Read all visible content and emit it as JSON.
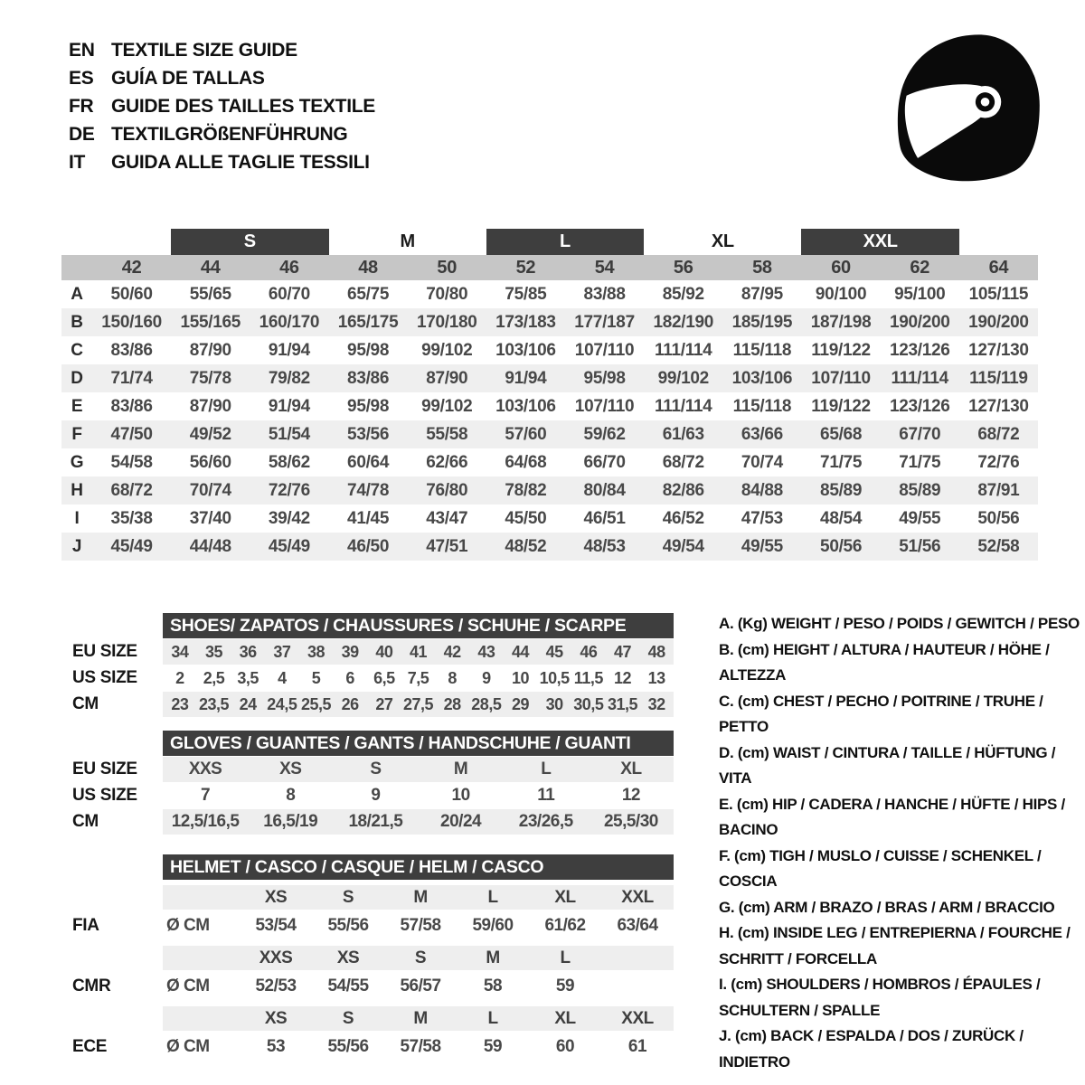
{
  "colors": {
    "dark_bar": "#3e3e3e",
    "gray_band": "#c6c6c6",
    "row_stripe": "#efefef",
    "text": "#1c1c1c",
    "value_text": "#484848"
  },
  "header": {
    "languages": [
      {
        "code": "EN",
        "title": "TEXTILE SIZE GUIDE"
      },
      {
        "code": "ES",
        "title": "GUÍA DE TALLAS"
      },
      {
        "code": "FR",
        "title": "GUIDE DES TAILLES TEXTILE"
      },
      {
        "code": "DE",
        "title": "TEXTILGRÖßENFÜHRUNG"
      },
      {
        "code": "IT",
        "title": "GUIDA ALLE TAGLIE TESSILI"
      }
    ],
    "icon": "racing-helmet-icon"
  },
  "main_table": {
    "size_groups": [
      {
        "label": "S",
        "dark": true
      },
      {
        "label": "M",
        "dark": false
      },
      {
        "label": "L",
        "dark": true
      },
      {
        "label": "XL",
        "dark": false
      },
      {
        "label": "XXL",
        "dark": true
      }
    ],
    "columns": [
      "42",
      "44",
      "46",
      "48",
      "50",
      "52",
      "54",
      "56",
      "58",
      "60",
      "62",
      "64"
    ],
    "rows": [
      {
        "letter": "A",
        "values": [
          "50/60",
          "55/65",
          "60/70",
          "65/75",
          "70/80",
          "75/85",
          "83/88",
          "85/92",
          "87/95",
          "90/100",
          "95/100",
          "105/115"
        ]
      },
      {
        "letter": "B",
        "values": [
          "150/160",
          "155/165",
          "160/170",
          "165/175",
          "170/180",
          "173/183",
          "177/187",
          "182/190",
          "185/195",
          "187/198",
          "190/200",
          "190/200"
        ]
      },
      {
        "letter": "C",
        "values": [
          "83/86",
          "87/90",
          "91/94",
          "95/98",
          "99/102",
          "103/106",
          "107/110",
          "111/114",
          "115/118",
          "119/122",
          "123/126",
          "127/130"
        ]
      },
      {
        "letter": "D",
        "values": [
          "71/74",
          "75/78",
          "79/82",
          "83/86",
          "87/90",
          "91/94",
          "95/98",
          "99/102",
          "103/106",
          "107/110",
          "111/114",
          "115/119"
        ]
      },
      {
        "letter": "E",
        "values": [
          "83/86",
          "87/90",
          "91/94",
          "95/98",
          "99/102",
          "103/106",
          "107/110",
          "111/114",
          "115/118",
          "119/122",
          "123/126",
          "127/130"
        ]
      },
      {
        "letter": "F",
        "values": [
          "47/50",
          "49/52",
          "51/54",
          "53/56",
          "55/58",
          "57/60",
          "59/62",
          "61/63",
          "63/66",
          "65/68",
          "67/70",
          "68/72"
        ]
      },
      {
        "letter": "G",
        "values": [
          "54/58",
          "56/60",
          "58/62",
          "60/64",
          "62/66",
          "64/68",
          "66/70",
          "68/72",
          "70/74",
          "71/75",
          "71/75",
          "72/76"
        ]
      },
      {
        "letter": "H",
        "values": [
          "68/72",
          "70/74",
          "72/76",
          "74/78",
          "76/80",
          "78/82",
          "80/84",
          "82/86",
          "84/88",
          "85/89",
          "85/89",
          "87/91"
        ]
      },
      {
        "letter": "I",
        "values": [
          "35/38",
          "37/40",
          "39/42",
          "41/45",
          "43/47",
          "45/50",
          "46/51",
          "46/52",
          "47/53",
          "48/54",
          "49/55",
          "50/56"
        ]
      },
      {
        "letter": "J",
        "values": [
          "45/49",
          "44/48",
          "45/49",
          "46/50",
          "47/51",
          "48/52",
          "48/53",
          "49/54",
          "49/55",
          "50/56",
          "51/56",
          "52/58"
        ]
      }
    ]
  },
  "shoes_table": {
    "title": "SHOES/ ZAPATOS / CHAUSSURES / SCHUHE / SCARPE",
    "rows": [
      {
        "label": "EU SIZE",
        "striped": true,
        "values": [
          "34",
          "35",
          "36",
          "37",
          "38",
          "39",
          "40",
          "41",
          "42",
          "43",
          "44",
          "45",
          "46",
          "47",
          "48"
        ]
      },
      {
        "label": "US SIZE",
        "striped": false,
        "values": [
          "2",
          "2,5",
          "3,5",
          "4",
          "5",
          "6",
          "6,5",
          "7,5",
          "8",
          "9",
          "10",
          "10,5",
          "11,5",
          "12",
          "13"
        ]
      },
      {
        "label": "CM",
        "striped": true,
        "values": [
          "23",
          "23,5",
          "24",
          "24,5",
          "25,5",
          "26",
          "27",
          "27,5",
          "28",
          "28,5",
          "29",
          "30",
          "30,5",
          "31,5",
          "32"
        ]
      }
    ]
  },
  "gloves_table": {
    "title": "GLOVES / GUANTES / GANTS / HANDSCHUHE / GUANTI",
    "rows": [
      {
        "label": "EU SIZE",
        "striped": true,
        "values": [
          "XXS",
          "XS",
          "S",
          "M",
          "L",
          "XL"
        ]
      },
      {
        "label": "US SIZE",
        "striped": false,
        "values": [
          "7",
          "8",
          "9",
          "10",
          "11",
          "12"
        ]
      },
      {
        "label": "CM",
        "striped": true,
        "values": [
          "12,5/16,5",
          "16,5/19",
          "18/21,5",
          "20/24",
          "23/26,5",
          "25,5/30"
        ]
      }
    ]
  },
  "helmet_table": {
    "title": "HELMET / CASCO / CASQUE / HELM / CASCO",
    "sections": [
      {
        "label": "FIA",
        "unit": "Ø CM",
        "sizes": [
          "XS",
          "S",
          "M",
          "L",
          "XL",
          "XXL"
        ],
        "values": [
          "53/54",
          "55/56",
          "57/58",
          "59/60",
          "61/62",
          "63/64"
        ]
      },
      {
        "label": "CMR",
        "unit": "Ø CM",
        "sizes": [
          "XXS",
          "XS",
          "S",
          "M",
          "L",
          ""
        ],
        "values": [
          "52/53",
          "54/55",
          "56/57",
          "58",
          "59",
          ""
        ]
      },
      {
        "label": "ECE",
        "unit": "Ø CM",
        "sizes": [
          "XS",
          "S",
          "M",
          "L",
          "XL",
          "XXL"
        ],
        "values": [
          "53",
          "55/56",
          "57/58",
          "59",
          "60",
          "61"
        ]
      }
    ]
  },
  "legend": {
    "items": [
      "A. (Kg) WEIGHT / PESO / POIDS / GEWITCH / PESO",
      "B. (cm) HEIGHT / ALTURA / HAUTEUR / HÖHE / ALTEZZA",
      "C. (cm) CHEST / PECHO / POITRINE / TRUHE / PETTO",
      "D. (cm) WAIST / CINTURA / TAILLE / HÜFTUNG / VITA",
      "E. (cm) HIP / CADERA / HANCHE / HÜFTE / HIPS /  BACINO",
      "F. (cm) TIGH / MUSLO / CUISSE / SCHENKEL / COSCIA",
      "G. (cm) ARM  / BRAZO / BRAS / ARM / BRACCIO",
      "H. (cm) INSIDE LEG / ENTREPIERNA / FOURCHE / SCHRITT / FORCELLA",
      "I.  (cm) SHOULDERS / HOMBROS / ÉPAULES / SCHULTERN / SPALLE",
      "J. (cm) BACK / ESPALDA / DOS / ZURÜCK / INDIETRO"
    ]
  }
}
